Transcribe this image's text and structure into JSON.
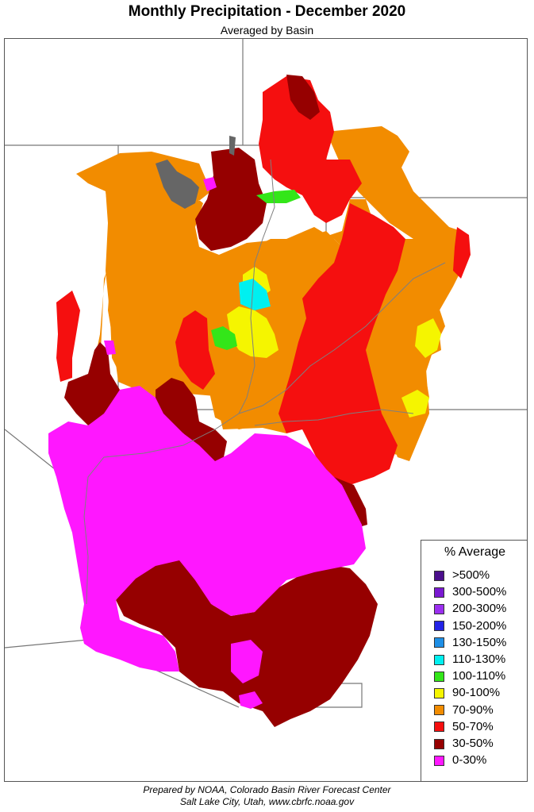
{
  "title": "Monthly Precipitation - December 2020",
  "subtitle": "Averaged by Basin",
  "legend": {
    "title": "% Average",
    "items": [
      {
        "label": ">500%",
        "color": "#4b0f8c"
      },
      {
        "label": "300-500%",
        "color": "#7a19d1"
      },
      {
        "label": "200-300%",
        "color": "#9b2ff0"
      },
      {
        "label": "150-200%",
        "color": "#2323e6"
      },
      {
        "label": "130-150%",
        "color": "#1e8fe6"
      },
      {
        "label": "110-130%",
        "color": "#00f0f0"
      },
      {
        "label": "100-110%",
        "color": "#33e619"
      },
      {
        "label": "90-100%",
        "color": "#f5f500"
      },
      {
        "label": "70-90%",
        "color": "#f28c00"
      },
      {
        "label": "50-70%",
        "color": "#f50f0f"
      },
      {
        "label": "30-50%",
        "color": "#960000"
      },
      {
        "label": "0-30%",
        "color": "#ff17ff"
      }
    ]
  },
  "colors": {
    "no_data": "#666666",
    "state_border": "#777777",
    "river": "#7f7f7f"
  },
  "credits": {
    "line1": "Prepared by NOAA, Colorado Basin River Forecast Center",
    "line2": "Salt Lake City, Utah, www.cbrfc.noaa.gov"
  }
}
